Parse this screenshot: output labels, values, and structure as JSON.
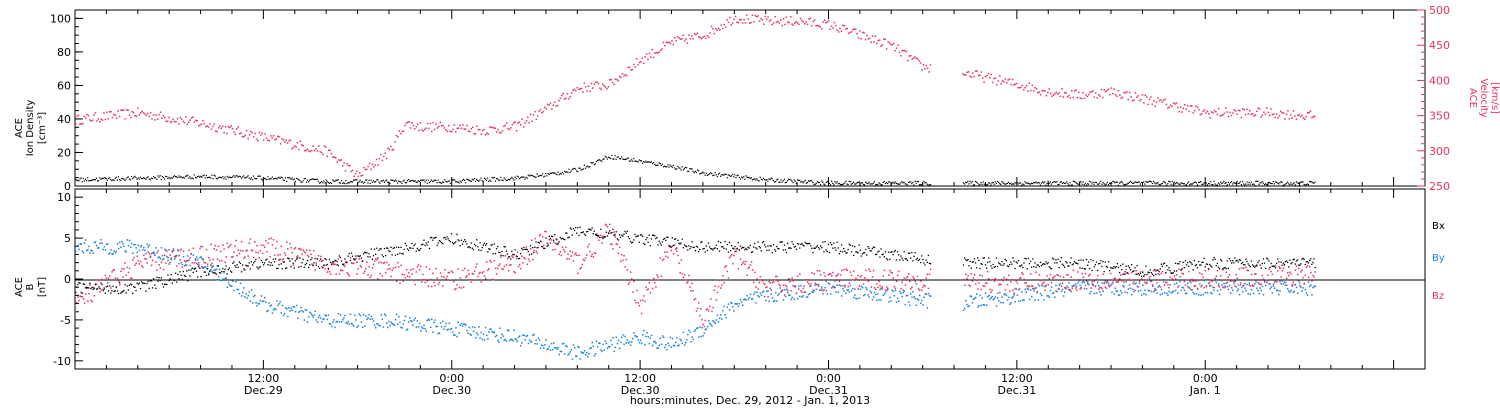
{
  "figure": {
    "xlabel": "hours:minutes, Dec. 29, 2012 - Jan. 1, 2013",
    "x_ticks": [
      {
        "hours": 12,
        "time": "12:00",
        "day": "Dec.29"
      },
      {
        "hours": 24,
        "time": "0:00",
        "day": "Dec.30"
      },
      {
        "hours": 36,
        "time": "12:00",
        "day": "Dec.30"
      },
      {
        "hours": 48,
        "time": "0:00",
        "day": "Dec.31"
      },
      {
        "hours": 60,
        "time": "12:00",
        "day": "Dec.31"
      },
      {
        "hours": 72,
        "time": "0:00",
        "day": "Jan. 1"
      }
    ]
  },
  "chart_data": [
    {
      "type": "scatter",
      "panel": "plasma",
      "ylabel_left": [
        "ACE",
        "Ion Density",
        "[cm⁻³]"
      ],
      "ylabel_right": [
        "ACE",
        "Velocity",
        "[km/s]"
      ],
      "ylim_left": [
        0,
        105
      ],
      "ylim_right": [
        250,
        500
      ],
      "xlim_hours": [
        0,
        86
      ],
      "left_ticks": [
        0,
        20,
        40,
        60,
        80,
        100
      ],
      "right_ticks": [
        250,
        300,
        350,
        400,
        450,
        500
      ],
      "series": [
        {
          "axis": "left",
          "color": "#000000",
          "x": [
            0,
            4,
            8,
            12,
            16,
            20,
            24,
            28,
            30,
            32,
            34,
            36,
            38,
            40,
            44,
            48,
            52,
            56,
            60,
            64,
            68,
            72,
            76,
            79
          ],
          "values": [
            4,
            5,
            6,
            5,
            3,
            3,
            3,
            5,
            7,
            10,
            18,
            15,
            12,
            8,
            4,
            2,
            2,
            2,
            2,
            2,
            2,
            2,
            2,
            2
          ]
        },
        {
          "axis": "right",
          "color": "#e8335e",
          "x": [
            0,
            4,
            8,
            12,
            16,
            18,
            20,
            21,
            22,
            24,
            26,
            28,
            30,
            32,
            34,
            36,
            38,
            40,
            42,
            44,
            46,
            48,
            50,
            52,
            54,
            56,
            58,
            60,
            62,
            64,
            66,
            68,
            70,
            72,
            74,
            76,
            79
          ],
          "values": [
            345,
            355,
            340,
            320,
            300,
            265,
            300,
            340,
            335,
            335,
            330,
            335,
            360,
            390,
            395,
            430,
            455,
            465,
            490,
            485,
            485,
            480,
            465,
            450,
            420,
            415,
            405,
            395,
            385,
            380,
            385,
            375,
            365,
            355,
            355,
            355,
            350
          ]
        }
      ]
    },
    {
      "type": "scatter",
      "panel": "magnetic",
      "ylabel_left": [
        "ACE",
        "B",
        "[nT]"
      ],
      "ylim": [
        -11,
        11
      ],
      "xlim_hours": [
        0,
        86
      ],
      "left_ticks": [
        -10,
        -5,
        0,
        5,
        10
      ],
      "legend": [
        "Bx",
        "By",
        "Bz"
      ],
      "series": [
        {
          "name": "Bx",
          "color": "#000000",
          "x": [
            0,
            4,
            8,
            12,
            16,
            20,
            24,
            28,
            32,
            36,
            40,
            44,
            48,
            52,
            56,
            60,
            64,
            68,
            72,
            76,
            79
          ],
          "values": [
            -1,
            -1,
            1,
            2,
            2,
            3.5,
            5,
            3,
            6,
            5,
            4,
            4,
            4,
            3,
            2,
            2,
            2,
            1,
            2,
            2,
            2
          ]
        },
        {
          "name": "By",
          "color": "#1a82d6",
          "x": [
            0,
            4,
            8,
            12,
            16,
            20,
            24,
            28,
            30,
            32,
            34,
            36,
            38,
            40,
            42,
            44,
            48,
            52,
            56,
            60,
            64,
            68,
            72,
            76,
            79
          ],
          "values": [
            4,
            4,
            2,
            -3,
            -5,
            -5,
            -6,
            -7,
            -8,
            -9,
            -8,
            -7,
            -8,
            -6,
            -3,
            -2,
            -1,
            -2,
            -3,
            -2,
            -1,
            -1,
            -1,
            -1,
            -1
          ]
        },
        {
          "name": "Bz",
          "color": "#e8335e",
          "x": [
            0,
            4,
            8,
            12,
            16,
            20,
            24,
            28,
            30,
            32,
            34,
            36,
            38,
            40,
            42,
            44,
            48,
            52,
            56,
            60,
            64,
            68,
            72,
            76,
            79
          ],
          "values": [
            -3,
            2,
            3,
            4,
            2,
            1,
            0,
            2,
            5,
            2,
            6,
            -3,
            4,
            -5,
            3,
            -1,
            0,
            0,
            0,
            -0.5,
            0,
            0,
            0,
            0.5,
            0.5
          ]
        }
      ]
    }
  ],
  "colors": {
    "black": "#000000",
    "accent": "#e8335e",
    "blue": "#1a82d6",
    "axis": "#000000"
  }
}
